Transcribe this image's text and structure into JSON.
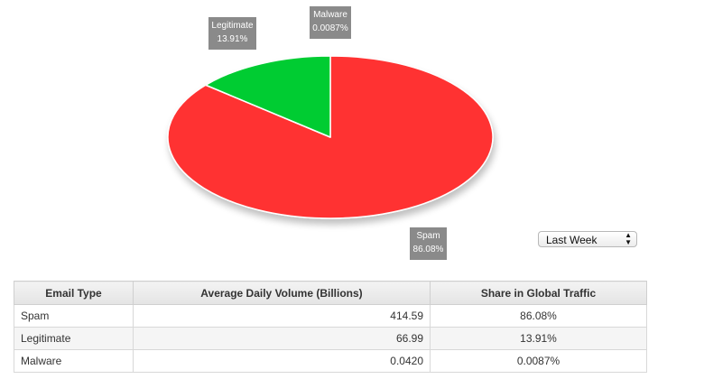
{
  "chart_data": {
    "type": "pie",
    "slices": [
      {
        "label": "Spam",
        "percent_label": "86.08%",
        "value": 86.08,
        "color": "#ff3333"
      },
      {
        "label": "Legitimate",
        "percent_label": "13.91%",
        "value": 13.91,
        "color": "#00cc33"
      },
      {
        "label": "Malware",
        "percent_label": "0.0087%",
        "value": 0.0087,
        "color": "#1f1f1f"
      }
    ]
  },
  "period_select": {
    "selected": "Last Week"
  },
  "table": {
    "headers": [
      "Email Type",
      "Average Daily Volume (Billions)",
      "Share in Global Traffic"
    ],
    "rows": [
      {
        "type": "Spam",
        "volume": "414.59",
        "share": "86.08%"
      },
      {
        "type": "Legitimate",
        "volume": "66.99",
        "share": "13.91%"
      },
      {
        "type": "Malware",
        "volume": "0.0420",
        "share": "0.0087%"
      }
    ]
  }
}
